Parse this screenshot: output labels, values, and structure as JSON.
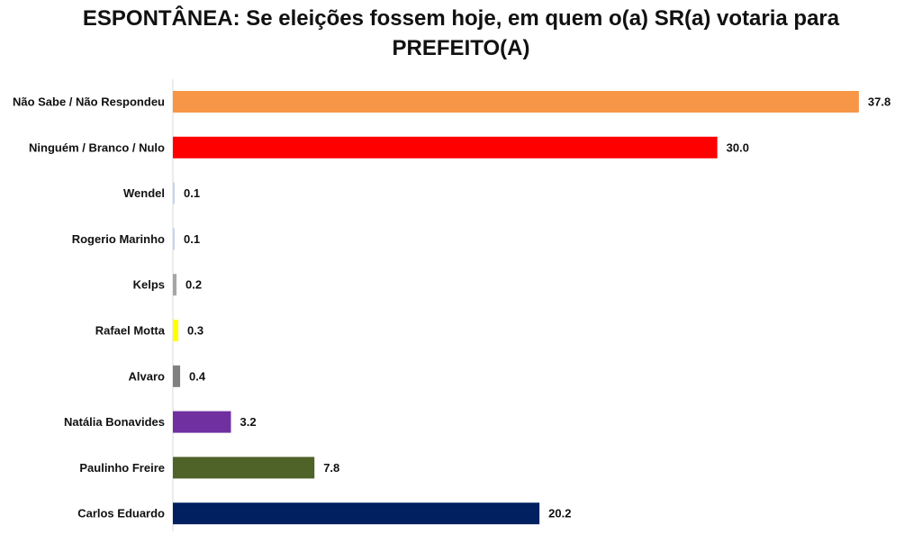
{
  "chart_data": {
    "type": "bar",
    "orientation": "horizontal",
    "title": "ESPONTÂNEA: Se eleições fossem hoje, em quem o(a) SR(a) votaria para\nPREFEITO(A)",
    "xlabel": "",
    "ylabel": "",
    "xlim": [
      0,
      38.5
    ],
    "grid": false,
    "legend": "none",
    "categories": [
      "Não Sabe / Não Respondeu",
      "Ninguém / Branco / Nulo",
      "Wendel",
      "Rogerio Marinho",
      "Kelps",
      "Rafael Motta",
      "Alvaro",
      "Natália Bonavides",
      "Paulinho Freire",
      "Carlos Eduardo"
    ],
    "values": [
      37.8,
      30.0,
      0.1,
      0.1,
      0.2,
      0.3,
      0.4,
      3.2,
      7.8,
      20.2
    ],
    "value_labels": [
      "37.8",
      "30.0",
      "0.1",
      "0.1",
      "0.2",
      "0.3",
      "0.4",
      "3.2",
      "7.8",
      "20.2"
    ],
    "colors": [
      "#F79646",
      "#FF0000",
      "#C5D6EC",
      "#C5D6EC",
      "#A6A6A6",
      "#FFFF00",
      "#808080",
      "#7030A0",
      "#4F6228",
      "#002060"
    ]
  }
}
